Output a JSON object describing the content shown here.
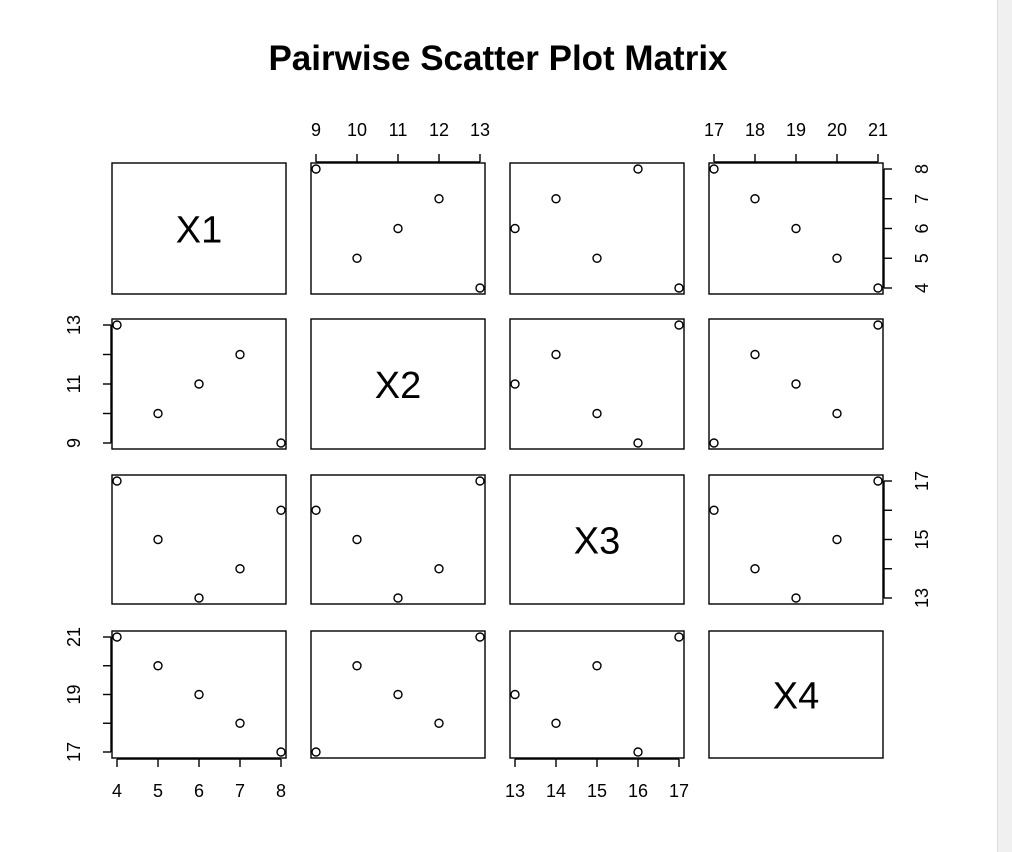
{
  "chart_data": {
    "type": "scatter",
    "title": "Pairwise Scatter Plot Matrix",
    "variables": [
      "X1",
      "X2",
      "X3",
      "X4"
    ],
    "observations": {
      "X1": [
        4,
        5,
        6,
        7,
        8
      ],
      "X2": [
        13,
        10,
        11,
        12,
        9
      ],
      "X3": [
        17,
        15,
        13,
        14,
        16
      ],
      "X4": [
        21,
        20,
        19,
        18,
        17
      ]
    },
    "axis_ranges": {
      "X1": [
        4,
        8
      ],
      "X2": [
        9,
        13
      ],
      "X3": [
        13,
        17
      ],
      "X4": [
        17,
        21
      ]
    },
    "ticks": {
      "X1": [
        4,
        5,
        6,
        7,
        8
      ],
      "X2": [
        9,
        10,
        11,
        12,
        13
      ],
      "X3": [
        13,
        14,
        15,
        16,
        17
      ],
      "X4": [
        17,
        18,
        19,
        20,
        21
      ]
    },
    "tick_labels": {
      "X1": [
        "4",
        "5",
        "6",
        "7",
        "8"
      ],
      "X2": [
        "9",
        "11",
        "13"
      ],
      "X3": [
        "13",
        "15",
        "17"
      ],
      "X4": [
        "17",
        "19",
        "21"
      ]
    },
    "grid": false,
    "point_marker": "open-circle"
  }
}
